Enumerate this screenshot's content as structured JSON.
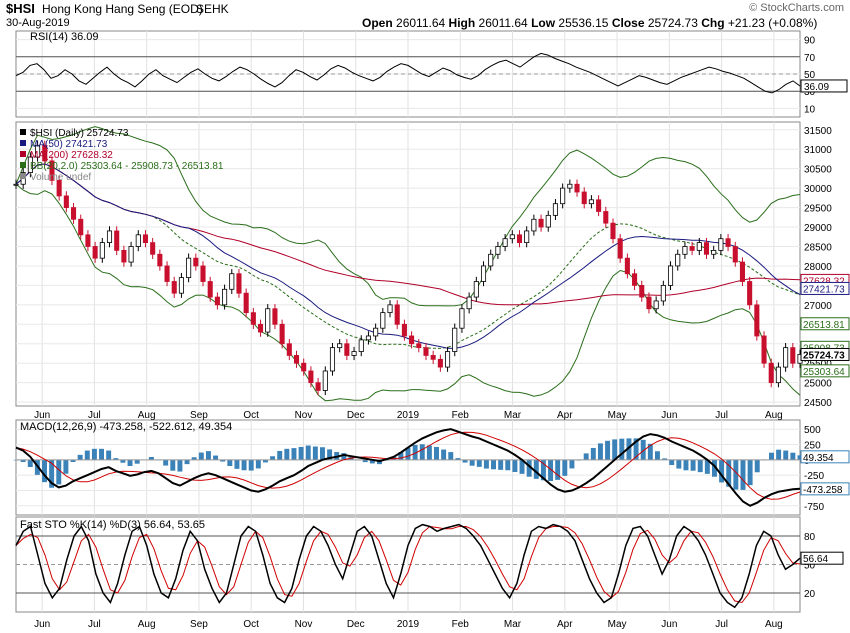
{
  "header": {
    "symbol": "$HSI",
    "name": "Hong Kong Hang Seng (EOD)",
    "exchange": "SEHK",
    "date": "30-Aug-2019",
    "brand": "© StockCharts.com",
    "open_label": "Open",
    "open": "26011.64",
    "high_label": "High",
    "high": "26011.64",
    "low_label": "Low",
    "low": "25536.15",
    "close_label": "Close",
    "close": "25724.73",
    "chg_label": "Chg",
    "chg": "+21.23 (+0.08%)"
  },
  "chart_data": [
    {
      "panel": "rsi",
      "type": "line",
      "title": "RSI(14) 36.09",
      "value": 36.09,
      "ylim": [
        0,
        100
      ],
      "yticks": [
        "90",
        "70",
        "50",
        "30",
        "10"
      ],
      "reference_lines": [
        70,
        50,
        30
      ],
      "series": [
        {
          "values": [
            48,
            52,
            60,
            62,
            55,
            45,
            48,
            55,
            50,
            42,
            38,
            45,
            52,
            58,
            50,
            44,
            40,
            35,
            42,
            50,
            55,
            48,
            44,
            40,
            46,
            52,
            56,
            50,
            45,
            42,
            47,
            53,
            58,
            55,
            50,
            44,
            39,
            35,
            40,
            48,
            55,
            52,
            47,
            43,
            49,
            56,
            60,
            57,
            52,
            48,
            45,
            42,
            46,
            53,
            58,
            62,
            60,
            55,
            50,
            47,
            52,
            57,
            54,
            49,
            46,
            44,
            48,
            55,
            60,
            64,
            66,
            62,
            58,
            64,
            70,
            74,
            72,
            68,
            65,
            62,
            58,
            55,
            52,
            48,
            44,
            40,
            36,
            40,
            44,
            48,
            46,
            43,
            40,
            38,
            42,
            46,
            49,
            52,
            55,
            58,
            56,
            53,
            51,
            48,
            45,
            40,
            35,
            30,
            28,
            32,
            38,
            42,
            36.09
          ]
        }
      ]
    },
    {
      "panel": "price",
      "type": "line",
      "title": "$HSI (Daily) 25724.73",
      "ylim": [
        24400,
        31700
      ],
      "yticks": [
        "31500",
        "31000",
        "30500",
        "30000",
        "29500",
        "29000",
        "28500",
        "28000",
        "27500",
        "27000",
        "26500",
        "26000",
        "25500",
        "25000",
        "24500"
      ],
      "x_labels": [
        "Jun",
        "Jul",
        "Aug",
        "Sep",
        "Oct",
        "Nov",
        "Dec",
        "2019",
        "Feb",
        "Mar",
        "Apr",
        "May",
        "Jun",
        "Jul",
        "Aug"
      ],
      "legend": [
        {
          "label": "$HSI (Daily) 25724.73",
          "color": "#000000"
        },
        {
          "label": "MA(50) 27421.73",
          "color": "#1a1a80"
        },
        {
          "label": "MA(200) 27628.32",
          "color": "#b0002a"
        },
        {
          "label": "BB(20,2.0) 25303.64 - 25908.73 - 26513.81",
          "color": "#2a6e1a"
        },
        {
          "label": "Volume undef",
          "color": "#888888"
        }
      ],
      "price_labels": [
        {
          "text": "27628.32",
          "value": 27628.32,
          "color": "#b0002a"
        },
        {
          "text": "27421.73",
          "value": 27421.73,
          "color": "#1a1a80"
        },
        {
          "text": "26513.81",
          "value": 26513.81,
          "color": "#2a6e1a"
        },
        {
          "text": "25908.73",
          "value": 25908.73,
          "color": "#2a6e1a"
        },
        {
          "text": "25724.73",
          "value": 25724.73,
          "color": "#000000"
        },
        {
          "text": "25303.64",
          "value": 25303.64,
          "color": "#2a6e1a"
        }
      ],
      "series": [
        {
          "values": [
            30100,
            30400,
            30800,
            31100,
            30700,
            30200,
            29800,
            29500,
            29200,
            28800,
            28500,
            28200,
            28600,
            28900,
            28400,
            28100,
            28500,
            28800,
            28600,
            28300,
            28000,
            27600,
            27300,
            27700,
            28200,
            28000,
            27600,
            27200,
            27000,
            27400,
            27800,
            27300,
            26800,
            26500,
            26300,
            26900,
            26500,
            26000,
            25700,
            25500,
            25300,
            25000,
            24800,
            25300,
            25900,
            26000,
            25700,
            25800,
            26100,
            26200,
            26400,
            26800,
            27000,
            26500,
            26200,
            26000,
            25900,
            25700,
            25600,
            25400,
            25800,
            26400,
            26900,
            27200,
            27600,
            28000,
            28300,
            28500,
            28700,
            28800,
            28600,
            28900,
            29200,
            29000,
            29300,
            29600,
            30000,
            30100,
            29900,
            29600,
            29700,
            29400,
            29100,
            28700,
            28200,
            27800,
            27500,
            27200,
            26900,
            27100,
            27500,
            28000,
            28300,
            28500,
            28400,
            28600,
            28300,
            28400,
            28700,
            28500,
            28100,
            27600,
            27000,
            26200,
            25500,
            25000,
            25400,
            25900,
            25500,
            25724.73
          ]
        }
      ]
    },
    {
      "panel": "macd",
      "type": "line",
      "title": "MACD(12,26,9) -473.258, -522.612, 49.354",
      "values": {
        "macd": -473.258,
        "signal": -522.612,
        "histogram": 49.354
      },
      "ylim": [
        -900,
        650
      ],
      "yticks": [
        "500",
        "250",
        "0",
        "-250",
        "-500",
        "-750"
      ],
      "right_labels": [
        "49.354",
        "-473.258"
      ],
      "series": [
        {
          "values": [
            200,
            150,
            50,
            -100,
            -250,
            -380,
            -450,
            -420,
            -350,
            -300,
            -250,
            -200,
            -150,
            -120,
            -180,
            -220,
            -260,
            -240,
            -200,
            -180,
            -220,
            -300,
            -380,
            -420,
            -360,
            -300,
            -250,
            -220,
            -250,
            -300,
            -350,
            -400,
            -450,
            -500,
            -520,
            -480,
            -420,
            -350,
            -300,
            -250,
            -180,
            -100,
            -50,
            0,
            30,
            50,
            80,
            60,
            40,
            20,
            0,
            -20,
            10,
            50,
            120,
            200,
            280,
            350,
            400,
            450,
            480,
            500,
            460,
            420,
            380,
            350,
            300,
            250,
            200,
            150,
            80,
            0,
            -100,
            -200,
            -300,
            -400,
            -480,
            -520,
            -500,
            -450,
            -380,
            -300,
            -200,
            -100,
            0,
            100,
            200,
            300,
            380,
            420,
            400,
            360,
            300,
            250,
            200,
            150,
            80,
            0,
            -100,
            -250,
            -400,
            -550,
            -680,
            -750,
            -700,
            -620,
            -560,
            -520,
            -500,
            -480,
            -473.258
          ]
        }
      ]
    },
    {
      "panel": "sto",
      "type": "line",
      "title": "Fast STO %K(14) %D(3) 56.64, 53.65",
      "values": {
        "k": 56.64,
        "d": 53.65
      },
      "ylim": [
        0,
        100
      ],
      "yticks": [
        "80",
        "50",
        "20"
      ],
      "reference_lines": [
        80,
        50,
        20
      ],
      "right_labels": [
        "56.64"
      ],
      "series": [
        {
          "values": [
            70,
            85,
            90,
            60,
            30,
            15,
            25,
            55,
            80,
            90,
            75,
            40,
            20,
            10,
            30,
            60,
            85,
            90,
            70,
            40,
            20,
            15,
            35,
            65,
            85,
            75,
            45,
            25,
            10,
            20,
            50,
            80,
            90,
            85,
            60,
            30,
            15,
            10,
            25,
            55,
            80,
            90,
            85,
            70,
            50,
            35,
            60,
            85,
            90,
            80,
            55,
            30,
            15,
            40,
            70,
            88,
            92,
            90,
            85,
            88,
            90,
            92,
            88,
            80,
            70,
            55,
            40,
            25,
            15,
            30,
            60,
            85,
            90,
            88,
            92,
            90,
            85,
            75,
            55,
            35,
            20,
            10,
            15,
            40,
            70,
            88,
            90,
            80,
            60,
            40,
            55,
            80,
            90,
            85,
            75,
            60,
            40,
            20,
            10,
            5,
            15,
            40,
            70,
            85,
            80,
            60,
            45,
            50,
            56.64
          ]
        }
      ]
    }
  ]
}
